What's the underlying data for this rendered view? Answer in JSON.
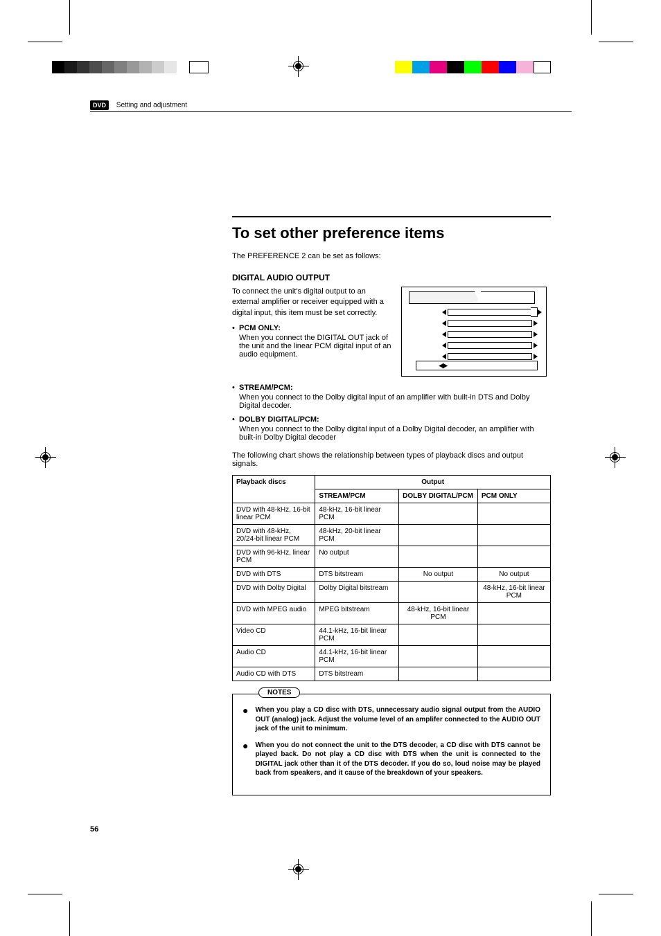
{
  "print_marks": {
    "graybar_colors": [
      "#000000",
      "#1a1a1a",
      "#333333",
      "#4d4d4d",
      "#666666",
      "#808080",
      "#999999",
      "#b3b3b3",
      "#cccccc",
      "#e6e6e6",
      "#ffffff",
      "#ffffff"
    ],
    "graybar_widths": [
      18,
      18,
      18,
      18,
      18,
      18,
      18,
      18,
      18,
      18,
      18,
      28
    ],
    "colorbar_colors": [
      "#ffff00",
      "#00a0e9",
      "#e4007f",
      "#000000",
      "#00ff00",
      "#ff0000",
      "#0000ff",
      "#f7b2d9",
      "#ffffff"
    ]
  },
  "header": {
    "badge": "DVD",
    "section": "Setting and adjustment"
  },
  "title": "To set other preference items",
  "intro": "The PREFERENCE 2 can be set as follows:",
  "digital_audio": {
    "heading": "DIGITAL AUDIO OUTPUT",
    "desc": "To connect the unit's digital output to an external amplifier or receiver equipped with a digital input, this item must be set correctly.",
    "options": [
      {
        "label": "PCM ONLY:",
        "desc": "When you connect the DIGITAL OUT jack of the unit and the linear PCM digital input of an audio equipment."
      },
      {
        "label": "STREAM/PCM:",
        "desc": "When you connect to the Dolby digital input of an amplifier with built-in DTS and Dolby Digital decoder."
      },
      {
        "label": "DOLBY DIGITAL/PCM:",
        "desc": "When you connect to the Dolby digital input of a Dolby Digital decoder, an amplifier with built-in Dolby Digital decoder"
      }
    ]
  },
  "chart_intro": "The following chart shows the relationship between types of playback discs and output signals.",
  "table": {
    "col_playback": "Playback discs",
    "col_output": "Output",
    "sub_stream": "STREAM/PCM",
    "sub_dolby": "DOLBY DIGITAL/PCM",
    "sub_pcm": "PCM ONLY",
    "rows": [
      {
        "disc": "DVD with 48-kHz, 16-bit linear PCM",
        "stream": "48-kHz, 16-bit linear PCM",
        "dolby": "",
        "pcm": ""
      },
      {
        "disc": "DVD with 48-kHz, 20/24-bit linear PCM",
        "stream": "48-kHz, 20-bit linear PCM",
        "dolby": "",
        "pcm": ""
      },
      {
        "disc": "DVD with 96-kHz, linear PCM",
        "stream": "No output",
        "dolby": "",
        "pcm": ""
      },
      {
        "disc": "DVD with DTS",
        "stream": "DTS bitstream",
        "dolby": "No output",
        "pcm": "No output",
        "center": true
      },
      {
        "disc": "DVD with Dolby Digital",
        "stream": "Dolby Digital bitstream",
        "dolby": "",
        "pcm": "48-kHz, 16-bit linear PCM",
        "pcm_center": true
      },
      {
        "disc": "DVD with MPEG audio",
        "stream": "MPEG bitstream",
        "dolby": "48-kHz, 16-bit linear PCM",
        "dolby_center": true,
        "pcm": ""
      },
      {
        "disc": "Video CD",
        "stream": "44.1-kHz, 16-bit linear PCM",
        "dolby": "",
        "pcm": ""
      },
      {
        "disc": "Audio CD",
        "stream": "44.1-kHz, 16-bit linear PCM",
        "dolby": "",
        "pcm": ""
      },
      {
        "disc": "Audio CD with DTS",
        "stream": "DTS bitstream",
        "dolby": "",
        "pcm": ""
      }
    ]
  },
  "notes": {
    "label": "NOTES",
    "items": [
      "When you play a CD disc with DTS, unnecessary audio signal output from the AUDIO OUT (analog) jack. Adjust the volume level of an amplifer connected to the AUDIO OUT jack of the unit to minimum.",
      "When you do not connect the unit to the DTS decoder, a CD disc with DTS cannot be played back. Do not play a CD disc with DTS when the unit is connected to the DIGITAL jack other than it of the DTS decoder. If you do so, loud noise may be played back from speakers, and it cause of the breakdown of your speakers."
    ]
  },
  "page_number": "56",
  "osd_arrows": "◀▶"
}
